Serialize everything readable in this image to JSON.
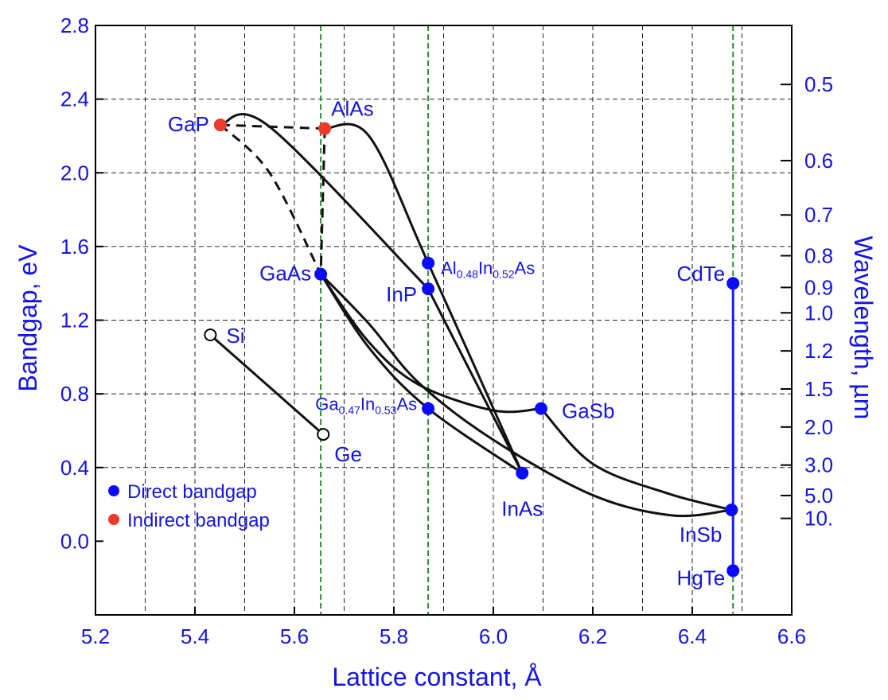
{
  "colors": {
    "text": "#1414e6",
    "direct": "#0a0aff",
    "indirect": "#ee3a2a",
    "curve": "#111111",
    "grid": "#222222",
    "guide": "#2e8b2e",
    "hgcd": "#1a1aff"
  },
  "chart_data": {
    "type": "scatter",
    "title": "",
    "xlabel": "Lattice constant, Å",
    "ylabel": "Bandgap, eV",
    "y2label": "Wavelength, µm",
    "xlim": [
      5.2,
      6.6
    ],
    "ylim": [
      -0.4,
      2.8
    ],
    "x_ticks": [
      "5.2",
      "5.4",
      "5.6",
      "5.8",
      "6.0",
      "6.2",
      "6.4",
      "6.6"
    ],
    "y_ticks": [
      "0.0",
      "0.4",
      "0.8",
      "1.2",
      "1.6",
      "2.0",
      "2.4",
      "2.8"
    ],
    "y2_ticks": [
      {
        "label": "0.5",
        "um": 0.5
      },
      {
        "label": "0.6",
        "um": 0.6
      },
      {
        "label": "0.7",
        "um": 0.7
      },
      {
        "label": "0.8",
        "um": 0.8
      },
      {
        "label": "0.9",
        "um": 0.9
      },
      {
        "label": "1.0",
        "um": 1.0
      },
      {
        "label": "1.2",
        "um": 1.2
      },
      {
        "label": "1.5",
        "um": 1.5
      },
      {
        "label": "2.0",
        "um": 2.0
      },
      {
        "label": "3.0",
        "um": 3.0
      },
      {
        "label": "5.0",
        "um": 5.0
      },
      {
        "label": "10.",
        "um": 10.0
      }
    ],
    "grid": true,
    "guides_x": [
      5.653,
      5.869,
      6.482
    ],
    "points": [
      {
        "id": "GaP",
        "x": 5.451,
        "y": 2.26,
        "kind": "indirect",
        "label": [
          {
            "t": "GaP"
          }
        ],
        "anchor": "end"
      },
      {
        "id": "AlAs",
        "x": 5.661,
        "y": 2.24,
        "kind": "indirect",
        "label": [
          {
            "t": "AlAs"
          }
        ],
        "anchor": "start"
      },
      {
        "id": "GaAs",
        "x": 5.653,
        "y": 1.45,
        "kind": "direct",
        "label": [
          {
            "t": "GaAs"
          }
        ],
        "anchor": "end"
      },
      {
        "id": "AlInAs",
        "x": 5.869,
        "y": 1.51,
        "kind": "direct",
        "label": [
          {
            "t": "Al"
          },
          {
            "t": "0.48",
            "sub": true
          },
          {
            "t": "In"
          },
          {
            "t": "0.52",
            "sub": true
          },
          {
            "t": "As"
          }
        ],
        "anchor": "start"
      },
      {
        "id": "InP",
        "x": 5.869,
        "y": 1.37,
        "kind": "direct",
        "label": [
          {
            "t": "InP"
          }
        ],
        "anchor": "end"
      },
      {
        "id": "CdTe",
        "x": 6.482,
        "y": 1.4,
        "kind": "direct",
        "label": [
          {
            "t": "CdTe"
          }
        ],
        "anchor": "end"
      },
      {
        "id": "Si",
        "x": 5.431,
        "y": 1.12,
        "kind": "elemental",
        "label": [
          {
            "t": "Si"
          }
        ],
        "anchor": "start"
      },
      {
        "id": "GaInAs",
        "x": 5.869,
        "y": 0.72,
        "kind": "direct",
        "label": [
          {
            "t": "Ga"
          },
          {
            "t": "0.47",
            "sub": true
          },
          {
            "t": "In"
          },
          {
            "t": "0.53",
            "sub": true
          },
          {
            "t": "As"
          }
        ],
        "anchor": "end"
      },
      {
        "id": "GaSb",
        "x": 6.096,
        "y": 0.72,
        "kind": "direct",
        "label": [
          {
            "t": "GaSb"
          }
        ],
        "anchor": "start"
      },
      {
        "id": "Ge",
        "x": 5.658,
        "y": 0.58,
        "kind": "elemental",
        "label": [
          {
            "t": "Ge"
          }
        ],
        "anchor": "start"
      },
      {
        "id": "InAs",
        "x": 6.058,
        "y": 0.37,
        "kind": "direct",
        "label": [
          {
            "t": "InAs"
          }
        ],
        "anchor": "middle"
      },
      {
        "id": "InSb",
        "x": 6.479,
        "y": 0.17,
        "kind": "direct",
        "label": [
          {
            "t": "InSb"
          }
        ],
        "anchor": "end"
      },
      {
        "id": "HgTe",
        "x": 6.482,
        "y": -0.16,
        "kind": "direct",
        "label": [
          {
            "t": "HgTe"
          }
        ],
        "anchor": "end"
      }
    ],
    "curves": [
      {
        "id": "GaP-AlAs",
        "dashed": true,
        "pts": [
          [
            5.451,
            2.26
          ],
          [
            5.661,
            2.24
          ]
        ]
      },
      {
        "id": "GaP-GaAs",
        "dashed": true,
        "pts": [
          [
            5.451,
            2.26
          ],
          [
            5.55,
            2.0
          ],
          [
            5.653,
            1.45
          ]
        ]
      },
      {
        "id": "AlAs-GaAs",
        "dashed": true,
        "pts": [
          [
            5.661,
            2.24
          ],
          [
            5.653,
            1.45
          ]
        ]
      },
      {
        "id": "AlAs-InAs",
        "dashed": false,
        "pts": [
          [
            5.661,
            2.24
          ],
          [
            5.75,
            2.2
          ],
          [
            5.869,
            1.51
          ],
          [
            6.058,
            0.37
          ]
        ]
      },
      {
        "id": "GaP-InP",
        "dashed": false,
        "pts": [
          [
            5.451,
            2.26
          ],
          [
            5.55,
            2.25
          ],
          [
            5.869,
            1.37
          ]
        ]
      },
      {
        "id": "InP-InAs",
        "dashed": false,
        "pts": [
          [
            5.869,
            1.37
          ],
          [
            6.058,
            0.37
          ]
        ]
      },
      {
        "id": "GaAs-InAs",
        "dashed": false,
        "pts": [
          [
            5.653,
            1.45
          ],
          [
            5.75,
            1.05
          ],
          [
            5.869,
            0.72
          ],
          [
            6.058,
            0.37
          ]
        ]
      },
      {
        "id": "GaAs-GaSb",
        "dashed": false,
        "pts": [
          [
            5.653,
            1.45
          ],
          [
            5.75,
            1.08
          ],
          [
            5.85,
            0.85
          ],
          [
            6.0,
            0.71
          ],
          [
            6.096,
            0.72
          ]
        ]
      },
      {
        "id": "GaAs-InSb",
        "dashed": false,
        "pts": [
          [
            5.653,
            1.45
          ],
          [
            5.75,
            1.18
          ],
          [
            5.85,
            0.86
          ],
          [
            6.0,
            0.55
          ],
          [
            6.2,
            0.25
          ],
          [
            6.36,
            0.14
          ],
          [
            6.479,
            0.17
          ]
        ]
      },
      {
        "id": "GaSb-InSb",
        "dashed": false,
        "pts": [
          [
            6.096,
            0.72
          ],
          [
            6.2,
            0.42
          ],
          [
            6.35,
            0.26
          ],
          [
            6.479,
            0.17
          ]
        ]
      },
      {
        "id": "Si-Ge",
        "dashed": false,
        "pts": [
          [
            5.431,
            1.12
          ],
          [
            5.658,
            0.58
          ]
        ]
      }
    ],
    "hgcd_line": [
      [
        6.482,
        1.4
      ],
      [
        6.482,
        -0.16
      ]
    ],
    "legend": {
      "position": "bottom-left",
      "entries": [
        {
          "label": "Direct bandgap",
          "kind": "direct"
        },
        {
          "label": "Indirect bandgap",
          "kind": "indirect"
        }
      ]
    }
  }
}
